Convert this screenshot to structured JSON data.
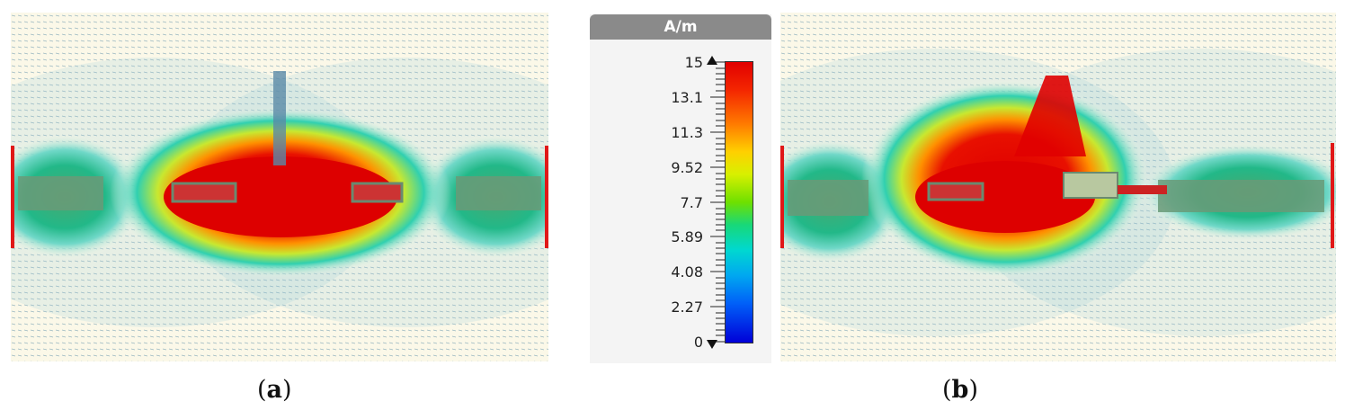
{
  "legend": {
    "unit": "A/m",
    "ticks": [
      "15",
      "13.1",
      "11.3",
      "9.52",
      "7.7",
      "5.89",
      "4.08",
      "2.27",
      "0"
    ]
  },
  "captions": {
    "a_open": "(",
    "a_letter": "a",
    "a_close": ")",
    "b_open": "(",
    "b_letter": "b",
    "b_close": ")"
  }
}
